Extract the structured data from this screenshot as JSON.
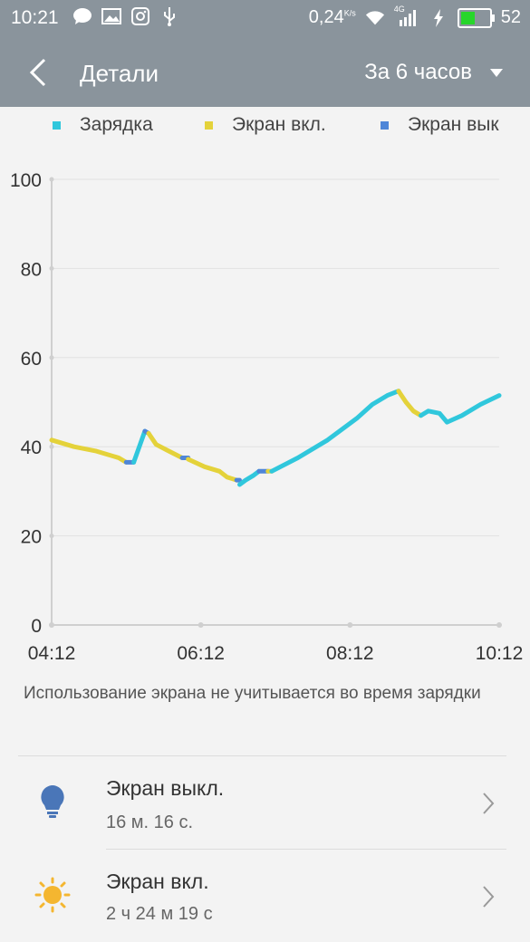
{
  "status_bar": {
    "time": "10:21",
    "network_speed": "0,24",
    "network_speed_unit": "K/s",
    "network_type": "4G",
    "battery_level": "52",
    "battery_fraction": 0.52,
    "icons": [
      "message-icon",
      "image-icon",
      "instagram-icon",
      "usb-icon",
      "wifi-icon",
      "signal-icon",
      "charging-bolt-icon",
      "battery-icon"
    ]
  },
  "app_bar": {
    "title": "Детали",
    "period_label": "За 6 часов"
  },
  "legend": [
    {
      "label": "Зарядка",
      "color": "#30c7dc"
    },
    {
      "label": "Экран вкл.",
      "color": "#e4d23a"
    },
    {
      "label": "Экран вык",
      "color": "#4f86d8"
    }
  ],
  "chart_data": {
    "type": "line",
    "x_tick_labels": [
      "04:12",
      "06:12",
      "08:12",
      "10:12"
    ],
    "y_tick_labels": [
      "100",
      "80",
      "60",
      "40",
      "20",
      "0"
    ],
    "ylim": [
      0,
      100
    ],
    "xlim_hours": [
      4.2,
      10.2
    ],
    "grid": true,
    "colors": {
      "charging": "#30c7dc",
      "screen_on": "#e4d23a",
      "screen_off": "#4f86d8"
    },
    "series": [
      {
        "state": "screen_on",
        "x": [
          4.2,
          4.5,
          4.8,
          5.1,
          5.2
        ],
        "y": [
          41.5,
          40,
          39,
          37.5,
          36.5
        ]
      },
      {
        "state": "screen_off",
        "x": [
          5.2,
          5.3
        ],
        "y": [
          36.5,
          36.5
        ]
      },
      {
        "state": "charging",
        "x": [
          5.3,
          5.45
        ],
        "y": [
          36.5,
          43.5
        ]
      },
      {
        "state": "screen_off",
        "x": [
          5.45,
          5.5
        ],
        "y": [
          43.5,
          43
        ]
      },
      {
        "state": "screen_on",
        "x": [
          5.5,
          5.6,
          5.75,
          5.95
        ],
        "y": [
          43,
          40.5,
          39.2,
          37.5
        ]
      },
      {
        "state": "screen_off",
        "x": [
          5.95,
          6.03
        ],
        "y": [
          37.5,
          37.5
        ]
      },
      {
        "state": "screen_on",
        "x": [
          6.03,
          6.25,
          6.45,
          6.55,
          6.68
        ],
        "y": [
          37.2,
          35.5,
          34.5,
          33.2,
          32.5
        ]
      },
      {
        "state": "screen_off",
        "x": [
          6.68,
          6.72
        ],
        "y": [
          32.5,
          32.5
        ]
      },
      {
        "state": "charging",
        "x": [
          6.72,
          6.8,
          6.9,
          6.98
        ],
        "y": [
          31.5,
          32.5,
          33.5,
          34.5
        ]
      },
      {
        "state": "screen_off",
        "x": [
          6.98,
          7.1
        ],
        "y": [
          34.5,
          34.5
        ]
      },
      {
        "state": "screen_on",
        "x": [
          7.1,
          7.15
        ],
        "y": [
          34.5,
          34.5
        ]
      },
      {
        "state": "charging",
        "x": [
          7.15,
          7.5,
          7.9,
          8.3,
          8.5,
          8.7,
          8.85
        ],
        "y": [
          34.5,
          37.5,
          41.5,
          46.5,
          49.5,
          51.5,
          52.5
        ]
      },
      {
        "state": "screen_on",
        "x": [
          8.85,
          8.95,
          9.05,
          9.15
        ],
        "y": [
          52.5,
          50,
          48,
          47
        ]
      },
      {
        "state": "charging",
        "x": [
          9.15,
          9.25,
          9.4,
          9.5,
          9.7,
          9.95,
          10.2
        ],
        "y": [
          47,
          48,
          47.5,
          45.5,
          47,
          49.5,
          51.5
        ]
      }
    ]
  },
  "note": "Использование экрана не учитывается во время зарядки",
  "items": [
    {
      "title": "Экран выкл.",
      "subtitle": "16 м. 16 с.",
      "icon": "lightbulb-icon",
      "icon_color": "#4a76b8"
    },
    {
      "title": "Экран вкл.",
      "subtitle": "2 ч 24 м 19 с",
      "icon": "sun-icon",
      "icon_color": "#f4b630"
    }
  ]
}
